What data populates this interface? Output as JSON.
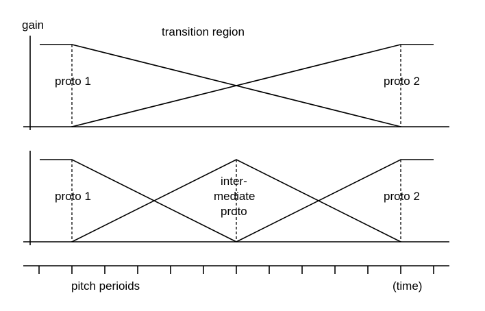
{
  "top_panel": {
    "axis_label": "gain",
    "title": "transition region",
    "proto_left": "proto 1",
    "proto_right": "proto 2"
  },
  "bottom_panel": {
    "proto_left": "proto 1",
    "proto_middle": [
      "inter-",
      "mediate",
      "proto"
    ],
    "proto_right": "proto 2"
  },
  "time_axis": {
    "label_left": "pitch perioids",
    "label_right": "(time)"
  }
}
